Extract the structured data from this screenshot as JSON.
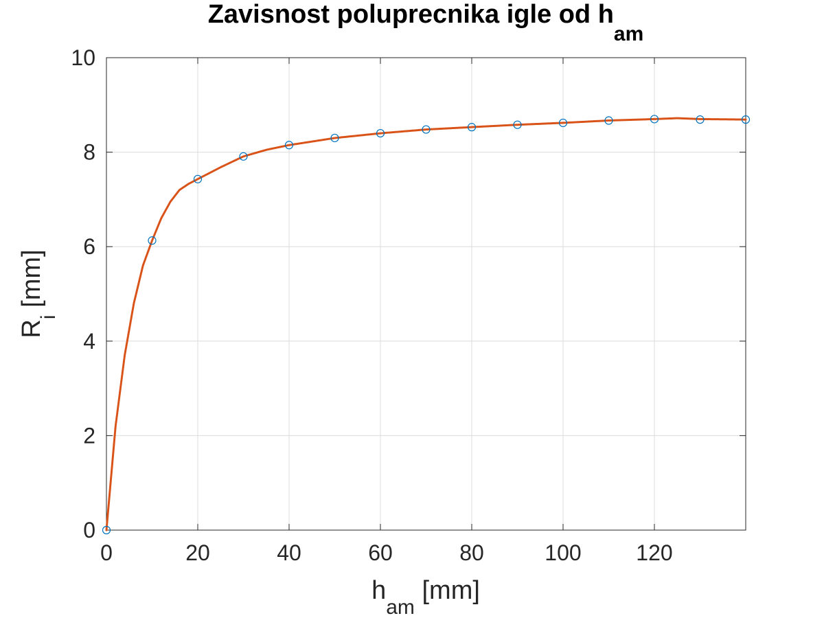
{
  "chart_data": {
    "type": "scatter",
    "title": {
      "main": "Zavisnost poluprecnika igle od h",
      "sub": "am"
    },
    "xlabel": {
      "main": "h",
      "sub": "am",
      "unit": " [mm]"
    },
    "ylabel": {
      "main": "R",
      "sub": "i",
      "unit": " [mm]"
    },
    "xlim": [
      0,
      140
    ],
    "ylim": [
      0,
      10
    ],
    "x_ticks": [
      "0",
      "20",
      "40",
      "60",
      "80",
      "100",
      "120"
    ],
    "y_ticks": [
      "0",
      "2",
      "4",
      "6",
      "8",
      "10"
    ],
    "x_tick_values": [
      0,
      20,
      40,
      60,
      80,
      100,
      120
    ],
    "y_tick_values": [
      0,
      2,
      4,
      6,
      8,
      10
    ],
    "grid": true,
    "series": [
      {
        "kind": "markers",
        "marker": "circle",
        "color": "#0072BD",
        "x": [
          0,
          10,
          20,
          30,
          40,
          50,
          60,
          70,
          80,
          90,
          100,
          110,
          120,
          130,
          140
        ],
        "y": [
          0,
          6.13,
          7.43,
          7.91,
          8.15,
          8.3,
          8.4,
          8.48,
          8.53,
          8.58,
          8.62,
          8.67,
          8.7,
          8.69,
          8.69
        ]
      },
      {
        "kind": "dotted-line",
        "color": "#D95319",
        "x": [
          0,
          2,
          4,
          6,
          8,
          10,
          12,
          14,
          16,
          18,
          20,
          25,
          30,
          35,
          40,
          50,
          60,
          70,
          80,
          90,
          100,
          110,
          120,
          125,
          130,
          140
        ],
        "y": [
          0,
          2.2,
          3.7,
          4.8,
          5.6,
          6.13,
          6.6,
          6.95,
          7.2,
          7.33,
          7.43,
          7.68,
          7.91,
          8.05,
          8.15,
          8.3,
          8.4,
          8.48,
          8.53,
          8.58,
          8.62,
          8.67,
          8.7,
          8.72,
          8.7,
          8.69
        ]
      }
    ]
  }
}
